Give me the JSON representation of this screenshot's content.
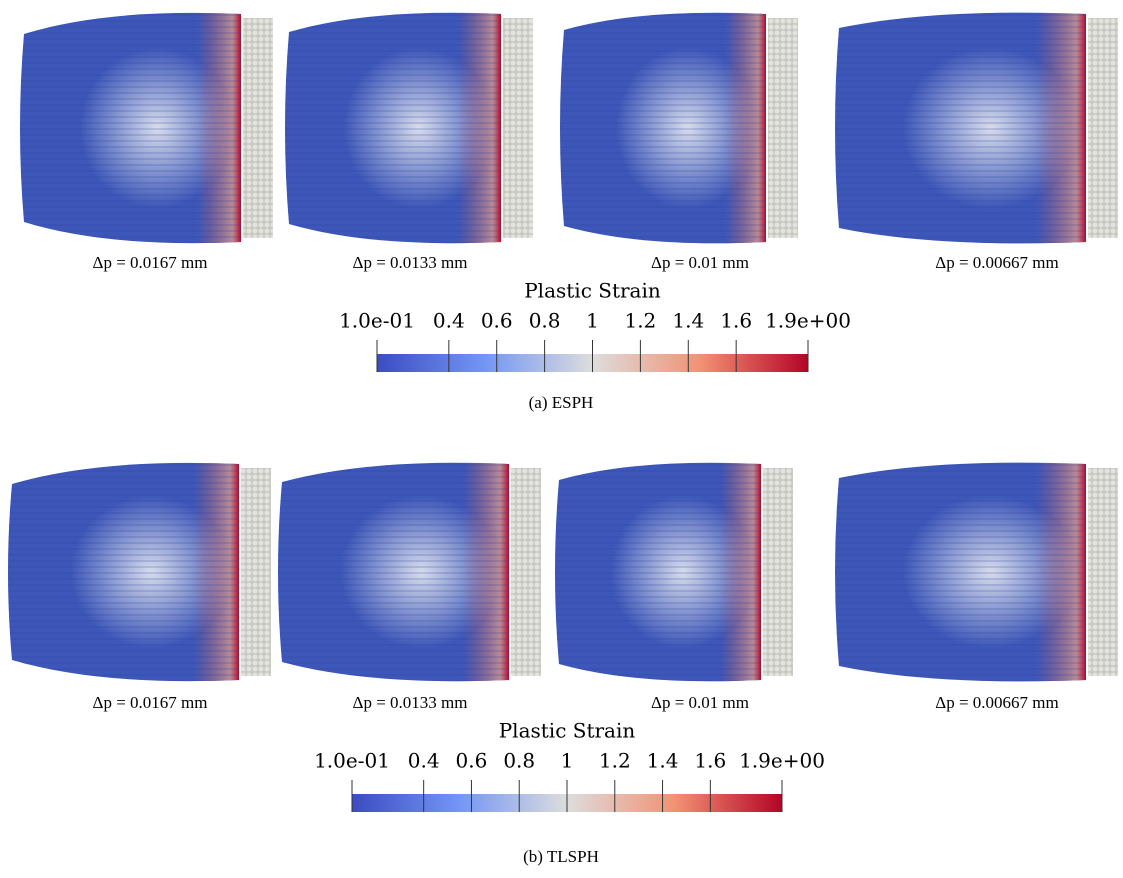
{
  "panels": [
    {
      "caption": "(a) ESPH",
      "images": [
        {
          "label": "Δp = 0.0167 mm"
        },
        {
          "label": "Δp = 0.0133 mm"
        },
        {
          "label": "Δp = 0.01 mm"
        },
        {
          "label": "Δp = 0.00667 mm"
        }
      ],
      "colorbar": {
        "title": "Plastic Strain",
        "ticks": [
          {
            "value": 0.1,
            "label": "1.0e-01"
          },
          0.4,
          0.6,
          0.8,
          1,
          1.2,
          1.4,
          1.6,
          {
            "value": 1.9,
            "label": "1.9e+00"
          }
        ]
      }
    },
    {
      "caption": "(b) TLSPH",
      "images": [
        {
          "label": "Δp = 0.0167 mm"
        },
        {
          "label": "Δp = 0.0133 mm"
        },
        {
          "label": "Δp = 0.01 mm"
        },
        {
          "label": "Δp = 0.00667 mm"
        }
      ],
      "colorbar": {
        "title": "Plastic Strain",
        "ticks": [
          {
            "value": 0.1,
            "label": "1.0e-01"
          },
          0.4,
          0.6,
          0.8,
          1,
          1.2,
          1.4,
          1.6,
          {
            "value": 1.9,
            "label": "1.9e+00"
          }
        ]
      }
    }
  ]
}
